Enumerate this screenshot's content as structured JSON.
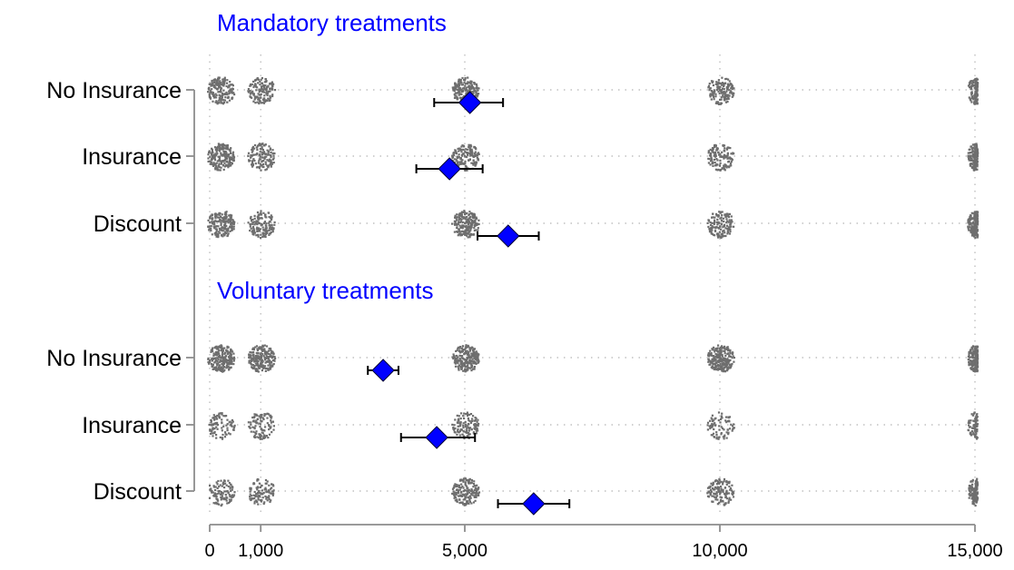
{
  "chart_data": {
    "type": "scatter",
    "xlim": [
      0,
      15000
    ],
    "xticks": [
      {
        "value": 0,
        "label": "0"
      },
      {
        "value": 1000,
        "label": "1,000"
      },
      {
        "value": 5000,
        "label": "5,000"
      },
      {
        "value": 10000,
        "label": "10,000"
      },
      {
        "value": 15000,
        "label": "15,000"
      }
    ],
    "grid": "dotted",
    "colors": {
      "marker": "#0000ff",
      "section_title": "#0000ff",
      "dots": "#6e6e6e"
    },
    "groups": [
      {
        "title": "Mandatory treatments",
        "rows": [
          {
            "label": "No Insurance",
            "mean": 5100,
            "ci": [
              4400,
              5750
            ],
            "clusters": [
              {
                "x": 100,
                "density": 0.7
              },
              {
                "x": 1000,
                "density": 0.55
              },
              {
                "x": 5000,
                "density": 0.7
              },
              {
                "x": 10000,
                "density": 0.6
              },
              {
                "x": 15000,
                "density": 0.5
              }
            ]
          },
          {
            "label": "Insurance",
            "mean": 4700,
            "ci": [
              4050,
              5350
            ],
            "clusters": [
              {
                "x": 100,
                "density": 0.8
              },
              {
                "x": 1000,
                "density": 0.5
              },
              {
                "x": 5000,
                "density": 0.6
              },
              {
                "x": 10000,
                "density": 0.5
              },
              {
                "x": 15000,
                "density": 0.6
              }
            ]
          },
          {
            "label": "Discount",
            "mean": 5850,
            "ci": [
              5250,
              6450
            ],
            "clusters": [
              {
                "x": 100,
                "density": 0.7
              },
              {
                "x": 1000,
                "density": 0.55
              },
              {
                "x": 5000,
                "density": 0.8
              },
              {
                "x": 10000,
                "density": 0.55
              },
              {
                "x": 15000,
                "density": 0.7
              }
            ]
          }
        ]
      },
      {
        "title": "Voluntary treatments",
        "rows": [
          {
            "label": "No Insurance",
            "mean": 3400,
            "ci": [
              3100,
              3700
            ],
            "clusters": [
              {
                "x": 100,
                "density": 0.9
              },
              {
                "x": 1000,
                "density": 0.9
              },
              {
                "x": 5000,
                "density": 0.9
              },
              {
                "x": 10000,
                "density": 0.9
              },
              {
                "x": 15000,
                "density": 0.7
              }
            ]
          },
          {
            "label": "Insurance",
            "mean": 4450,
            "ci": [
              3750,
              5200
            ],
            "clusters": [
              {
                "x": 100,
                "density": 0.35
              },
              {
                "x": 1000,
                "density": 0.4
              },
              {
                "x": 5000,
                "density": 0.45
              },
              {
                "x": 10000,
                "density": 0.3
              },
              {
                "x": 15000,
                "density": 0.3
              }
            ]
          },
          {
            "label": "Discount",
            "mean": 6350,
            "ci": [
              5650,
              7050
            ],
            "clusters": [
              {
                "x": 100,
                "density": 0.4
              },
              {
                "x": 1000,
                "density": 0.4
              },
              {
                "x": 5000,
                "density": 0.65
              },
              {
                "x": 10000,
                "density": 0.5
              },
              {
                "x": 15000,
                "density": 0.5
              }
            ]
          }
        ]
      }
    ]
  }
}
